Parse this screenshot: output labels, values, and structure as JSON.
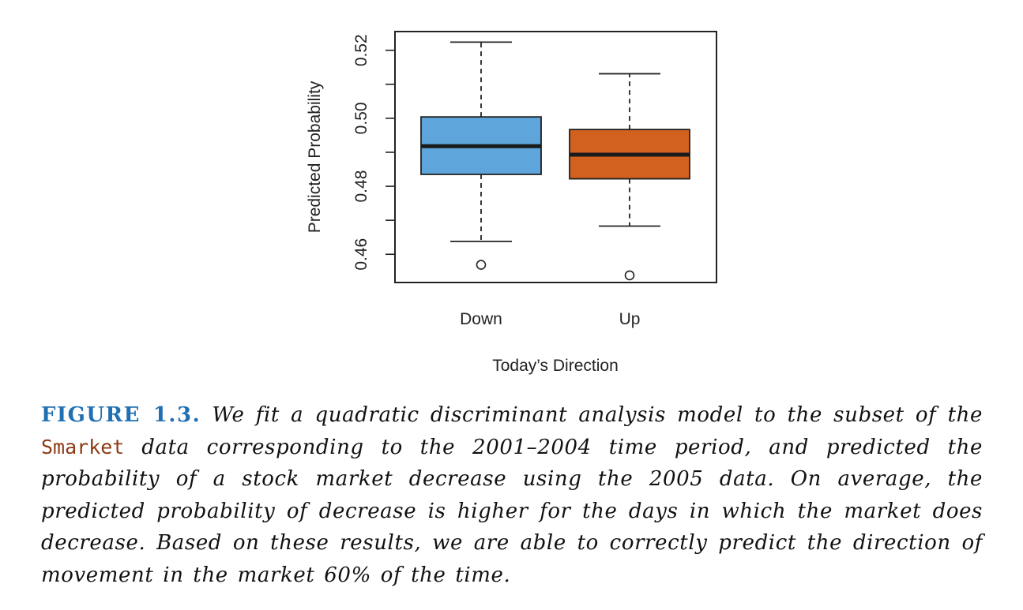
{
  "chart_data": {
    "type": "box",
    "ylabel": "Predicted Probability",
    "xlabel": "Today’s Direction",
    "ylim": [
      0.4517,
      0.5255
    ],
    "yticks": [
      0.46,
      0.48,
      0.5,
      0.52
    ],
    "ytick_labels": [
      "0.46",
      "0.48",
      "0.50",
      "0.52"
    ],
    "grid": false,
    "categories": [
      "Down",
      "Up"
    ],
    "boxes": [
      {
        "category": "Down",
        "color": "#5DA5DA",
        "whisker_low": 0.4638,
        "q1": 0.4835,
        "median": 0.4918,
        "q3": 0.5004,
        "whisker_high": 0.5224,
        "outliers": [
          0.4569
        ]
      },
      {
        "category": "Up",
        "color": "#D2601E",
        "whisker_low": 0.4683,
        "q1": 0.4822,
        "median": 0.4893,
        "q3": 0.4967,
        "whisker_high": 0.5131,
        "outliers": [
          0.4538
        ]
      }
    ]
  },
  "caption": {
    "label": "FIGURE 1.3.",
    "text_1": " We fit a quadratic discriminant analysis model to the subset of the ",
    "code": "Smarket",
    "text_2": " data corresponding to the 2001–2004 time period, and predicted the probability of a stock market decrease using the 2005 data. On average, the predicted probability of decrease is higher for the days in which the market does decrease. Based on these results, we are able to correctly predict the direction of movement in the market 60% of the time."
  }
}
